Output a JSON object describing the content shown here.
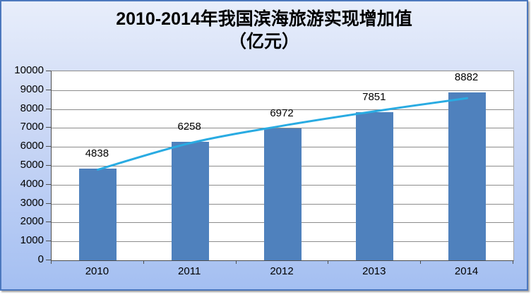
{
  "chart": {
    "title_line1": "2010-2014年我国滨海旅游实现增加值",
    "title_line2": "（亿元）"
  },
  "chart_data": {
    "type": "bar",
    "title": "2010-2014年我国滨海旅游实现增加值（亿元）",
    "categories": [
      "2010",
      "2011",
      "2012",
      "2013",
      "2014"
    ],
    "series": [
      {
        "role": "bars",
        "values": [
          4838,
          6258,
          6972,
          7851,
          8882
        ],
        "data_labels": [
          "4838",
          "6258",
          "6972",
          "7851",
          "8882"
        ]
      },
      {
        "role": "trendline",
        "values_estimated": [
          4794,
          6198,
          7116,
          7884,
          8577
        ]
      }
    ],
    "xlabel": "",
    "ylabel": "",
    "ylim": [
      0,
      10000
    ],
    "y_tick_step": 1000,
    "y_tick_labels": [
      "10000",
      "9000",
      "8000",
      "7000",
      "6000",
      "5000",
      "4000",
      "3000",
      "2000",
      "1000",
      "0"
    ],
    "grid": true,
    "legend_position": "none"
  },
  "colors": {
    "bar_fill": "#4F81BD",
    "trend_line": "#29ABE2",
    "gridline": "#8C8C8C",
    "axis_line": "#4D4D4D",
    "frame_border": "#4C78BE",
    "background_top": "#E8EEFB",
    "background_mid": "#CAD7F5",
    "background_bottom": "#A4BFF2",
    "plot_background": "#FFFFFF",
    "text": "#000000"
  }
}
